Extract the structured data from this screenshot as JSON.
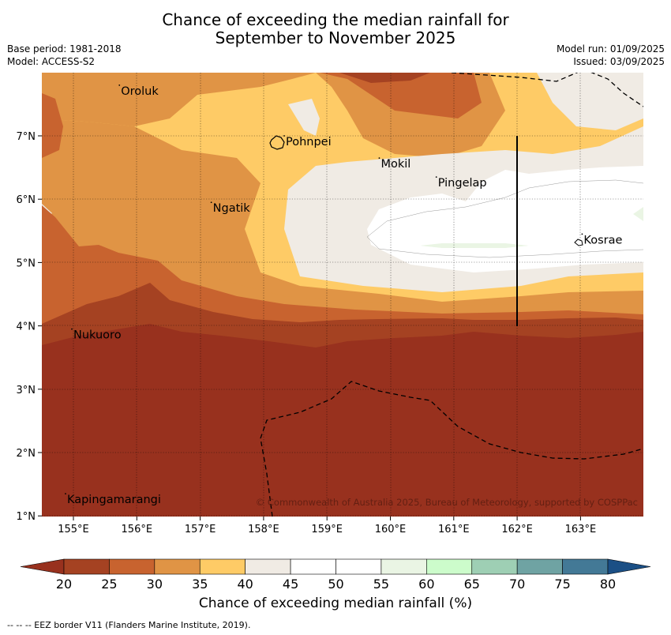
{
  "title_line1": "Chance of exceeding the median rainfall for",
  "title_line2": "September to November 2025",
  "meta_left": [
    "Base period: 1981-2018",
    "Model: ACCESS-S2"
  ],
  "meta_right": [
    "Model run: 01/09/2025",
    "Issued: 03/09/2025"
  ],
  "copyright": "© Commonwealth of Australia 2025, Bureau of Meteorology, supported by COSPPac",
  "lon_ticks": [
    "155°E",
    "156°E",
    "157°E",
    "158°E",
    "159°E",
    "160°E",
    "161°E",
    "162°E",
    "163°E"
  ],
  "lat_ticks": [
    "1°N",
    "2°N",
    "3°N",
    "4°N",
    "5°N",
    "6°N",
    "7°N"
  ],
  "places": [
    {
      "name": "Oroluk",
      "lon": 155.75,
      "lat": 7.65
    },
    {
      "name": "Pohnpei",
      "lon": 158.35,
      "lat": 6.85
    },
    {
      "name": "Mokil",
      "lon": 159.85,
      "lat": 6.5
    },
    {
      "name": "Pingelap",
      "lon": 160.75,
      "lat": 6.2
    },
    {
      "name": "Ngatik",
      "lon": 157.2,
      "lat": 5.8
    },
    {
      "name": "Kosrae",
      "lon": 163.05,
      "lat": 5.3
    },
    {
      "name": "Nukuoro",
      "lon": 155.0,
      "lat": 3.8
    },
    {
      "name": "Kapingamarangi",
      "lon": 154.9,
      "lat": 1.2
    }
  ],
  "colorbar": {
    "ticks": [
      "20",
      "25",
      "30",
      "35",
      "40",
      "45",
      "50",
      "55",
      "60",
      "65",
      "70",
      "75",
      "80"
    ],
    "colors": [
      "#a54222",
      "#c8632f",
      "#e09445",
      "#fecb66",
      "#f0ebe4",
      "#ffffff",
      "#ffffff",
      "#eaf5e4",
      "#ccfccb",
      "#9ecfb4",
      "#6fa3a3",
      "#437996"
    ],
    "under_color": "#98311e",
    "over_color": "#1b4f85",
    "label": "Chance of exceeding median rainfall (%)"
  },
  "footnote": "-- -- -- EEZ border V11 (Flanders Marine Institute, 2019)."
}
